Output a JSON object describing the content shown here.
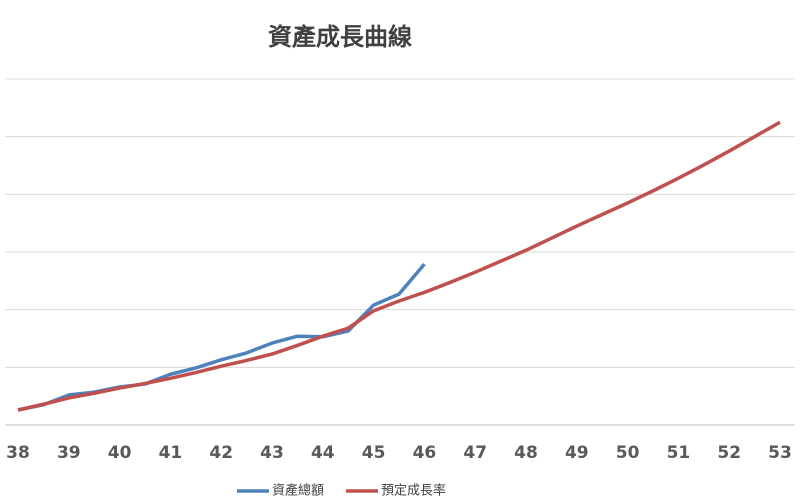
{
  "chart_data": {
    "type": "line",
    "title": "資產成長曲線",
    "x": [
      38,
      38.5,
      39,
      39.5,
      40,
      40.5,
      41,
      41.5,
      42,
      42.5,
      43,
      43.5,
      44,
      44.5,
      45,
      45.5,
      46,
      46.5,
      47,
      47.5,
      48,
      48.5,
      49,
      49.5,
      50,
      50.5,
      51,
      51.5,
      52,
      52.5,
      53
    ],
    "xlim": [
      38,
      53
    ],
    "xticks": [
      38,
      39,
      40,
      41,
      42,
      43,
      44,
      45,
      46,
      47,
      48,
      49,
      50,
      51,
      52,
      53
    ],
    "ylim": [
      0,
      6
    ],
    "yticks": [
      0,
      1,
      2,
      3,
      4,
      5,
      6
    ],
    "grid": true,
    "legend": "bottom",
    "series": [
      {
        "name": "資產總額",
        "color": "#4f81bd",
        "values": [
          0.26,
          0.35,
          0.52,
          0.57,
          0.66,
          0.71,
          0.88,
          0.99,
          1.13,
          1.25,
          1.42,
          1.54,
          1.53,
          1.63,
          2.08,
          2.27,
          2.79,
          null,
          null,
          null,
          null,
          null,
          null,
          null,
          null,
          null,
          null,
          null,
          null,
          null,
          null
        ]
      },
      {
        "name": "預定成長率",
        "color": "#c0504d",
        "values": [
          0.26,
          0.36,
          0.47,
          0.55,
          0.64,
          0.72,
          0.81,
          0.91,
          1.02,
          1.12,
          1.23,
          1.38,
          1.54,
          1.68,
          1.98,
          2.15,
          2.3,
          2.47,
          2.65,
          2.84,
          3.03,
          3.24,
          3.45,
          3.65,
          3.85,
          4.06,
          4.28,
          4.51,
          4.75,
          5.0,
          5.25
        ]
      }
    ]
  }
}
